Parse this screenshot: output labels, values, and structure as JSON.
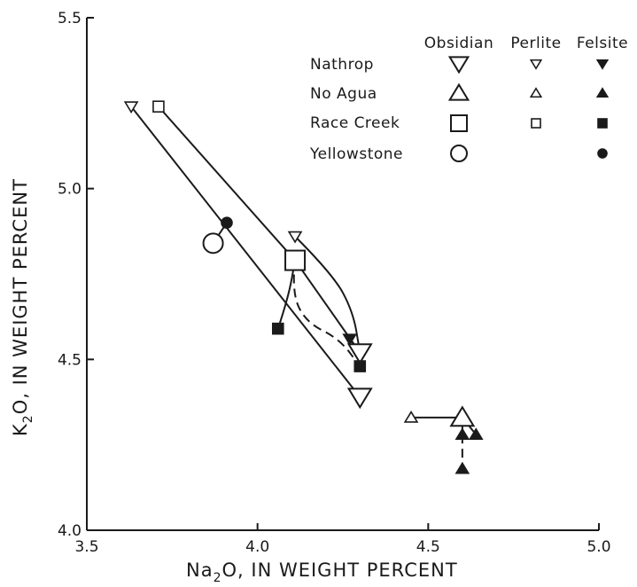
{
  "chart_data": {
    "type": "scatter",
    "title": "",
    "xlabel_prefix": "Na",
    "xlabel_sub": "2",
    "xlabel_suffix": "O, IN WEIGHT PERCENT",
    "ylabel_prefix": "K",
    "ylabel_sub": "2",
    "ylabel_suffix": "O, IN WEIGHT PERCENT",
    "xlim": [
      3.5,
      5.0
    ],
    "ylim": [
      4.0,
      5.5
    ],
    "x_ticks": [
      3.5,
      4.0,
      4.5,
      5.0
    ],
    "x_tick_labels": [
      "3.5",
      "4.0",
      "4.5",
      "5.0"
    ],
    "y_ticks": [
      4.0,
      4.5,
      5.0,
      5.5
    ],
    "y_tick_labels": [
      "4.0",
      "4.5",
      "5.0",
      "5.5"
    ],
    "grid": false,
    "legend_placement": "top-right",
    "legend": {
      "columns": [
        "Obsidian",
        "Perlite",
        "Felsite"
      ],
      "rows": [
        {
          "name": "Nathrop",
          "shape": "triangle-down"
        },
        {
          "name": "No Agua",
          "shape": "triangle-up"
        },
        {
          "name": "Race Creek",
          "shape": "square"
        },
        {
          "name": "Yellowstone",
          "shape": "circle"
        }
      ]
    },
    "series": [
      {
        "name": "Nathrop",
        "shape": "triangle-down",
        "points": [
          {
            "type": "obsidian",
            "x": 4.3,
            "y": 4.52
          },
          {
            "type": "obsidian",
            "x": 4.3,
            "y": 4.39
          },
          {
            "type": "perlite",
            "x": 3.63,
            "y": 5.24
          },
          {
            "type": "perlite",
            "x": 4.11,
            "y": 4.86
          },
          {
            "type": "felsite",
            "x": 4.27,
            "y": 4.56
          }
        ]
      },
      {
        "name": "No Agua",
        "shape": "triangle-up",
        "points": [
          {
            "type": "obsidian",
            "x": 4.6,
            "y": 4.33
          },
          {
            "type": "perlite",
            "x": 4.45,
            "y": 4.33
          },
          {
            "type": "felsite",
            "x": 4.6,
            "y": 4.28
          },
          {
            "type": "felsite",
            "x": 4.64,
            "y": 4.28
          },
          {
            "type": "felsite",
            "x": 4.6,
            "y": 4.18
          }
        ]
      },
      {
        "name": "Race Creek",
        "shape": "square",
        "points": [
          {
            "type": "obsidian",
            "x": 4.11,
            "y": 4.79
          },
          {
            "type": "perlite",
            "x": 3.71,
            "y": 5.24
          },
          {
            "type": "felsite",
            "x": 4.06,
            "y": 4.59
          },
          {
            "type": "felsite",
            "x": 4.3,
            "y": 4.48
          }
        ]
      },
      {
        "name": "Yellowstone",
        "shape": "circle",
        "points": [
          {
            "type": "obsidian",
            "x": 3.87,
            "y": 4.84
          },
          {
            "type": "felsite",
            "x": 3.91,
            "y": 4.9
          }
        ]
      }
    ],
    "connectors": [
      {
        "style": "solid",
        "points": [
          [
            3.63,
            5.24
          ],
          [
            4.3,
            4.39
          ]
        ]
      },
      {
        "style": "solid",
        "points": [
          [
            3.71,
            5.24
          ],
          [
            4.11,
            4.79
          ]
        ]
      },
      {
        "style": "solid",
        "points": [
          [
            4.11,
            4.79
          ],
          [
            4.3,
            4.52
          ]
        ]
      },
      {
        "style": "solid",
        "points": [
          [
            4.11,
            4.86
          ],
          [
            4.22,
            4.75
          ],
          [
            4.28,
            4.64
          ],
          [
            4.3,
            4.52
          ]
        ]
      },
      {
        "style": "solid",
        "points": [
          [
            4.27,
            4.56
          ],
          [
            4.3,
            4.52
          ]
        ]
      },
      {
        "style": "solid",
        "points": [
          [
            4.06,
            4.59
          ],
          [
            4.09,
            4.68
          ],
          [
            4.11,
            4.79
          ]
        ]
      },
      {
        "style": "dashed",
        "points": [
          [
            4.11,
            4.79
          ],
          [
            4.1,
            4.7
          ],
          [
            4.14,
            4.61
          ],
          [
            4.24,
            4.56
          ],
          [
            4.3,
            4.48
          ]
        ]
      },
      {
        "style": "solid",
        "points": [
          [
            3.87,
            4.84
          ],
          [
            3.91,
            4.9
          ]
        ]
      },
      {
        "style": "solid",
        "points": [
          [
            4.45,
            4.33
          ],
          [
            4.6,
            4.33
          ]
        ]
      },
      {
        "style": "dashed",
        "points": [
          [
            4.6,
            4.28
          ],
          [
            4.6,
            4.18
          ]
        ]
      },
      {
        "style": "solid",
        "points": [
          [
            4.6,
            4.33
          ],
          [
            4.6,
            4.28
          ]
        ]
      },
      {
        "style": "solid",
        "points": [
          [
            4.6,
            4.33
          ],
          [
            4.64,
            4.28
          ]
        ]
      }
    ]
  }
}
